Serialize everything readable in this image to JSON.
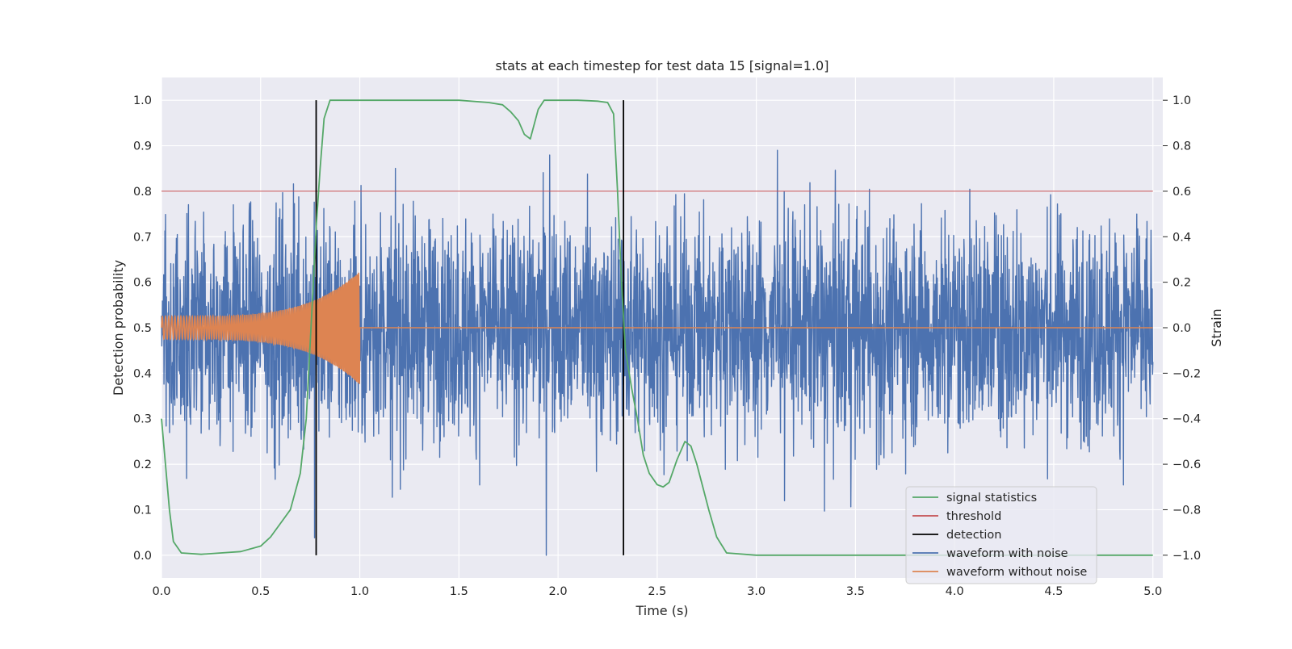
{
  "chart_data": {
    "type": "line",
    "title": "stats at each timestep for test data 15 [signal=1.0]",
    "xlabel": "Time (s)",
    "ylabel_left": "Detection probability",
    "ylabel_right": "Strain",
    "xlim": [
      0.0,
      5.05
    ],
    "ylim_left": [
      -0.05,
      1.05
    ],
    "ylim_right": [
      -1.1,
      1.1
    ],
    "x_ticks": [
      "0.0",
      "0.5",
      "1.0",
      "1.5",
      "2.0",
      "2.5",
      "3.0",
      "3.5",
      "4.0",
      "4.5",
      "5.0"
    ],
    "y_left_ticks": [
      "0.0",
      "0.1",
      "0.2",
      "0.3",
      "0.4",
      "0.5",
      "0.6",
      "0.7",
      "0.8",
      "0.9",
      "1.0"
    ],
    "y_right_ticks": [
      "−1.0",
      "−0.8",
      "−0.6",
      "−0.4",
      "−0.2",
      "0.0",
      "0.2",
      "0.4",
      "0.6",
      "0.8",
      "1.0"
    ],
    "grid": true,
    "legend_placement": "lower-right",
    "colors": {
      "signal_statistics": "#55a868",
      "threshold": "#c44e52",
      "detection": "#000000",
      "waveform_with_noise": "#4c72b0",
      "waveform_without_noise": "#dd8452",
      "plot_bg": "#eaeaf2",
      "grid": "#ffffff"
    },
    "series": [
      {
        "name": "signal statistics",
        "axis": "left",
        "x": [
          0.0,
          0.02,
          0.04,
          0.06,
          0.1,
          0.2,
          0.3,
          0.4,
          0.5,
          0.55,
          0.6,
          0.65,
          0.7,
          0.73,
          0.76,
          0.78,
          0.8,
          0.82,
          0.85,
          0.9,
          1.0,
          1.2,
          1.5,
          1.65,
          1.72,
          1.76,
          1.8,
          1.83,
          1.86,
          1.9,
          1.93,
          1.96,
          2.0,
          2.1,
          2.2,
          2.25,
          2.28,
          2.3,
          2.32,
          2.34,
          2.37,
          2.4,
          2.43,
          2.46,
          2.5,
          2.53,
          2.56,
          2.6,
          2.64,
          2.67,
          2.7,
          2.73,
          2.76,
          2.8,
          2.85,
          3.0,
          3.5,
          4.0,
          4.5,
          5.0
        ],
        "y": [
          0.3,
          0.2,
          0.1,
          0.03,
          0.005,
          0.002,
          0.005,
          0.008,
          0.02,
          0.04,
          0.07,
          0.1,
          0.18,
          0.3,
          0.55,
          0.72,
          0.85,
          0.96,
          1.0,
          1.0,
          1.0,
          1.0,
          1.0,
          0.995,
          0.99,
          0.975,
          0.955,
          0.925,
          0.915,
          0.98,
          1.0,
          1.0,
          1.0,
          1.0,
          0.998,
          0.995,
          0.97,
          0.8,
          0.6,
          0.45,
          0.37,
          0.3,
          0.22,
          0.18,
          0.155,
          0.15,
          0.16,
          0.21,
          0.25,
          0.24,
          0.2,
          0.15,
          0.1,
          0.04,
          0.005,
          0.0,
          0.0,
          0.0,
          0.0,
          0.0
        ]
      },
      {
        "name": "threshold",
        "axis": "left",
        "x": [
          0.0,
          5.0
        ],
        "y": [
          0.8,
          0.8
        ]
      },
      {
        "name": "detection",
        "axis": "left",
        "x": [
          0.78,
          2.33
        ],
        "y": [
          1.0,
          1.0
        ]
      },
      {
        "name": "waveform with noise",
        "axis": "right",
        "duration": 5.0,
        "amplitude_range": [
          -1.0,
          1.0
        ]
      },
      {
        "name": "waveform without noise",
        "axis": "right",
        "x_range": [
          0.0,
          1.0
        ],
        "amplitude_start": 0.05,
        "amplitude_end": 0.25
      }
    ]
  },
  "legend": {
    "items": [
      "signal statistics",
      "threshold",
      "detection",
      "waveform with noise",
      "waveform without noise"
    ]
  }
}
